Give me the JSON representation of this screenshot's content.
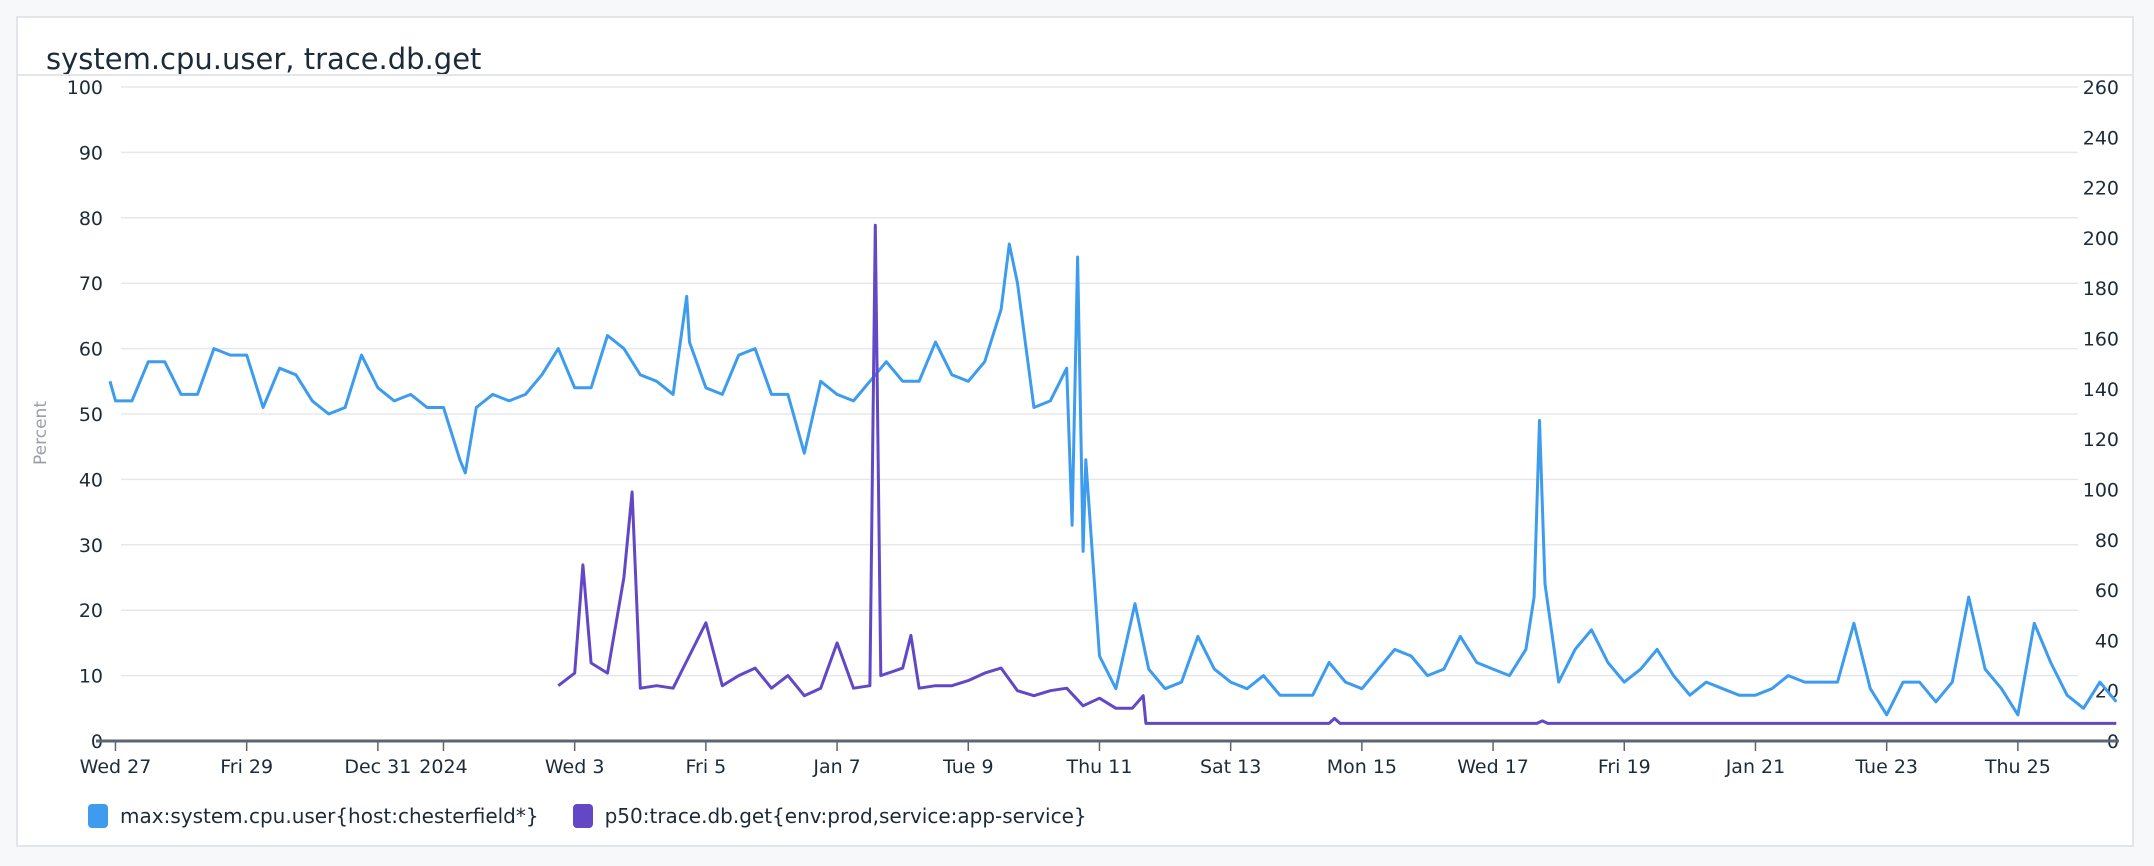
{
  "widget": {
    "title": "system.cpu.user, trace.db.get"
  },
  "chart_data": {
    "type": "line",
    "title": "system.cpu.user, trace.db.get",
    "ylabel": "Percent",
    "ylim": [
      0,
      100
    ],
    "yticks": [
      0,
      10,
      20,
      30,
      40,
      50,
      60,
      70,
      80,
      90,
      100
    ],
    "y2lim": [
      0,
      260
    ],
    "y2ticks": [
      0,
      20,
      40,
      60,
      80,
      100,
      120,
      140,
      160,
      180,
      200,
      220,
      240,
      260
    ],
    "xlim": [
      "2023-12-26T22:00",
      "2024-01-26T13:00"
    ],
    "xticks": [
      {
        "label": "Wed 27",
        "date": "2023-12-27T00:00"
      },
      {
        "label": "Fri 29",
        "date": "2023-12-29T00:00"
      },
      {
        "label": "Dec 31",
        "date": "2023-12-31T00:00"
      },
      {
        "label": "2024",
        "date": "2024-01-01T00:00"
      },
      {
        "label": "Wed 3",
        "date": "2024-01-03T00:00"
      },
      {
        "label": "Fri 5",
        "date": "2024-01-05T00:00"
      },
      {
        "label": "Jan 7",
        "date": "2024-01-07T00:00"
      },
      {
        "label": "Tue 9",
        "date": "2024-01-09T00:00"
      },
      {
        "label": "Thu 11",
        "date": "2024-01-11T00:00"
      },
      {
        "label": "Sat 13",
        "date": "2024-01-13T00:00"
      },
      {
        "label": "Mon 15",
        "date": "2024-01-15T00:00"
      },
      {
        "label": "Wed 17",
        "date": "2024-01-17T00:00"
      },
      {
        "label": "Fri 19",
        "date": "2024-01-19T00:00"
      },
      {
        "label": "Jan 21",
        "date": "2024-01-21T00:00"
      },
      {
        "label": "Tue 23",
        "date": "2024-01-23T00:00"
      },
      {
        "label": "Thu 25",
        "date": "2024-01-25T00:00"
      }
    ],
    "grid": true,
    "legend": "bottom-left",
    "series": [
      {
        "name": "max:system.cpu.user{host:chesterfield*}",
        "color": "#3d9cee",
        "axis": "left",
        "points": [
          [
            "2023-12-26T22:00",
            55
          ],
          [
            "2023-12-27T00:00",
            52
          ],
          [
            "2023-12-27T06:00",
            52
          ],
          [
            "2023-12-27T12:00",
            58
          ],
          [
            "2023-12-27T18:00",
            58
          ],
          [
            "2023-12-28T00:00",
            53
          ],
          [
            "2023-12-28T06:00",
            53
          ],
          [
            "2023-12-28T12:00",
            60
          ],
          [
            "2023-12-28T18:00",
            59
          ],
          [
            "2023-12-29T00:00",
            59
          ],
          [
            "2023-12-29T06:00",
            51
          ],
          [
            "2023-12-29T12:00",
            57
          ],
          [
            "2023-12-29T18:00",
            56
          ],
          [
            "2023-12-30T00:00",
            52
          ],
          [
            "2023-12-30T06:00",
            50
          ],
          [
            "2023-12-30T12:00",
            51
          ],
          [
            "2023-12-30T18:00",
            59
          ],
          [
            "2023-12-31T00:00",
            54
          ],
          [
            "2023-12-31T06:00",
            52
          ],
          [
            "2023-12-31T12:00",
            53
          ],
          [
            "2023-12-31T18:00",
            51
          ],
          [
            "2024-01-01T00:00",
            51
          ],
          [
            "2024-01-01T06:00",
            43
          ],
          [
            "2024-01-01T08:00",
            41
          ],
          [
            "2024-01-01T12:00",
            51
          ],
          [
            "2024-01-01T18:00",
            53
          ],
          [
            "2024-01-02T00:00",
            52
          ],
          [
            "2024-01-02T06:00",
            53
          ],
          [
            "2024-01-02T12:00",
            56
          ],
          [
            "2024-01-02T18:00",
            60
          ],
          [
            "2024-01-03T00:00",
            54
          ],
          [
            "2024-01-03T06:00",
            54
          ],
          [
            "2024-01-03T12:00",
            62
          ],
          [
            "2024-01-03T18:00",
            60
          ],
          [
            "2024-01-04T00:00",
            56
          ],
          [
            "2024-01-04T06:00",
            55
          ],
          [
            "2024-01-04T12:00",
            53
          ],
          [
            "2024-01-04T17:00",
            68
          ],
          [
            "2024-01-04T18:00",
            61
          ],
          [
            "2024-01-05T00:00",
            54
          ],
          [
            "2024-01-05T06:00",
            53
          ],
          [
            "2024-01-05T12:00",
            59
          ],
          [
            "2024-01-05T18:00",
            60
          ],
          [
            "2024-01-06T00:00",
            53
          ],
          [
            "2024-01-06T06:00",
            53
          ],
          [
            "2024-01-06T12:00",
            44
          ],
          [
            "2024-01-06T18:00",
            55
          ],
          [
            "2024-01-07T00:00",
            53
          ],
          [
            "2024-01-07T06:00",
            52
          ],
          [
            "2024-01-07T12:00",
            55
          ],
          [
            "2024-01-07T18:00",
            58
          ],
          [
            "2024-01-08T00:00",
            55
          ],
          [
            "2024-01-08T06:00",
            55
          ],
          [
            "2024-01-08T12:00",
            61
          ],
          [
            "2024-01-08T18:00",
            56
          ],
          [
            "2024-01-09T00:00",
            55
          ],
          [
            "2024-01-09T06:00",
            58
          ],
          [
            "2024-01-09T12:00",
            66
          ],
          [
            "2024-01-09T15:00",
            76
          ],
          [
            "2024-01-09T18:00",
            70
          ],
          [
            "2024-01-10T00:00",
            51
          ],
          [
            "2024-01-10T06:00",
            52
          ],
          [
            "2024-01-10T12:00",
            57
          ],
          [
            "2024-01-10T14:00",
            33
          ],
          [
            "2024-01-10T16:00",
            74
          ],
          [
            "2024-01-10T18:00",
            29
          ],
          [
            "2024-01-10T19:00",
            43
          ],
          [
            "2024-01-11T00:00",
            13
          ],
          [
            "2024-01-11T06:00",
            8
          ],
          [
            "2024-01-11T13:00",
            21
          ],
          [
            "2024-01-11T18:00",
            11
          ],
          [
            "2024-01-12T00:00",
            8
          ],
          [
            "2024-01-12T06:00",
            9
          ],
          [
            "2024-01-12T12:00",
            16
          ],
          [
            "2024-01-12T18:00",
            11
          ],
          [
            "2024-01-13T00:00",
            9
          ],
          [
            "2024-01-13T06:00",
            8
          ],
          [
            "2024-01-13T12:00",
            10
          ],
          [
            "2024-01-13T18:00",
            7
          ],
          [
            "2024-01-14T00:00",
            7
          ],
          [
            "2024-01-14T06:00",
            7
          ],
          [
            "2024-01-14T12:00",
            12
          ],
          [
            "2024-01-14T18:00",
            9
          ],
          [
            "2024-01-15T00:00",
            8
          ],
          [
            "2024-01-15T06:00",
            11
          ],
          [
            "2024-01-15T12:00",
            14
          ],
          [
            "2024-01-15T18:00",
            13
          ],
          [
            "2024-01-16T00:00",
            10
          ],
          [
            "2024-01-16T06:00",
            11
          ],
          [
            "2024-01-16T12:00",
            16
          ],
          [
            "2024-01-16T18:00",
            12
          ],
          [
            "2024-01-17T00:00",
            11
          ],
          [
            "2024-01-17T06:00",
            10
          ],
          [
            "2024-01-17T12:00",
            14
          ],
          [
            "2024-01-17T15:00",
            22
          ],
          [
            "2024-01-17T17:00",
            49
          ],
          [
            "2024-01-17T19:00",
            24
          ],
          [
            "2024-01-18T00:00",
            9
          ],
          [
            "2024-01-18T06:00",
            14
          ],
          [
            "2024-01-18T12:00",
            17
          ],
          [
            "2024-01-18T18:00",
            12
          ],
          [
            "2024-01-19T00:00",
            9
          ],
          [
            "2024-01-19T06:00",
            11
          ],
          [
            "2024-01-19T12:00",
            14
          ],
          [
            "2024-01-19T18:00",
            10
          ],
          [
            "2024-01-20T00:00",
            7
          ],
          [
            "2024-01-20T06:00",
            9
          ],
          [
            "2024-01-20T12:00",
            8
          ],
          [
            "2024-01-20T18:00",
            7
          ],
          [
            "2024-01-21T00:00",
            7
          ],
          [
            "2024-01-21T06:00",
            8
          ],
          [
            "2024-01-21T12:00",
            10
          ],
          [
            "2024-01-21T18:00",
            9
          ],
          [
            "2024-01-22T00:00",
            9
          ],
          [
            "2024-01-22T06:00",
            9
          ],
          [
            "2024-01-22T12:00",
            18
          ],
          [
            "2024-01-22T18:00",
            8
          ],
          [
            "2024-01-23T00:00",
            4
          ],
          [
            "2024-01-23T06:00",
            9
          ],
          [
            "2024-01-23T12:00",
            9
          ],
          [
            "2024-01-23T18:00",
            6
          ],
          [
            "2024-01-24T00:00",
            9
          ],
          [
            "2024-01-24T06:00",
            22
          ],
          [
            "2024-01-24T12:00",
            11
          ],
          [
            "2024-01-24T18:00",
            8
          ],
          [
            "2024-01-25T00:00",
            4
          ],
          [
            "2024-01-25T06:00",
            18
          ],
          [
            "2024-01-25T12:00",
            12
          ],
          [
            "2024-01-25T18:00",
            7
          ],
          [
            "2024-01-26T00:00",
            5
          ],
          [
            "2024-01-26T06:00",
            9
          ],
          [
            "2024-01-26T12:00",
            6
          ]
        ]
      },
      {
        "name": "p50:trace.db.get{env:prod,service:app-service}",
        "color": "#6248c6",
        "axis": "right",
        "points": [
          [
            "2024-01-02T18:00",
            22
          ],
          [
            "2024-01-03T00:00",
            27
          ],
          [
            "2024-01-03T03:00",
            70
          ],
          [
            "2024-01-03T06:00",
            31
          ],
          [
            "2024-01-03T12:00",
            27
          ],
          [
            "2024-01-03T18:00",
            65
          ],
          [
            "2024-01-03T21:00",
            99
          ],
          [
            "2024-01-04T00:00",
            21
          ],
          [
            "2024-01-04T06:00",
            22
          ],
          [
            "2024-01-04T12:00",
            21
          ],
          [
            "2024-01-04T18:00",
            34
          ],
          [
            "2024-01-05T00:00",
            47
          ],
          [
            "2024-01-05T06:00",
            22
          ],
          [
            "2024-01-05T12:00",
            26
          ],
          [
            "2024-01-05T18:00",
            29
          ],
          [
            "2024-01-06T00:00",
            21
          ],
          [
            "2024-01-06T06:00",
            26
          ],
          [
            "2024-01-06T12:00",
            18
          ],
          [
            "2024-01-06T18:00",
            21
          ],
          [
            "2024-01-07T00:00",
            39
          ],
          [
            "2024-01-07T06:00",
            21
          ],
          [
            "2024-01-07T12:00",
            22
          ],
          [
            "2024-01-07T14:00",
            205
          ],
          [
            "2024-01-07T16:00",
            26
          ],
          [
            "2024-01-08T00:00",
            29
          ],
          [
            "2024-01-08T03:00",
            42
          ],
          [
            "2024-01-08T06:00",
            21
          ],
          [
            "2024-01-08T12:00",
            22
          ],
          [
            "2024-01-08T18:00",
            22
          ],
          [
            "2024-01-09T00:00",
            24
          ],
          [
            "2024-01-09T06:00",
            27
          ],
          [
            "2024-01-09T12:00",
            29
          ],
          [
            "2024-01-09T18:00",
            20
          ],
          [
            "2024-01-10T00:00",
            18
          ],
          [
            "2024-01-10T06:00",
            20
          ],
          [
            "2024-01-10T12:00",
            21
          ],
          [
            "2024-01-10T18:00",
            14
          ],
          [
            "2024-01-11T00:00",
            17
          ],
          [
            "2024-01-11T06:00",
            13
          ],
          [
            "2024-01-11T12:00",
            13
          ],
          [
            "2024-01-11T16:00",
            18
          ],
          [
            "2024-01-11T17:00",
            7
          ],
          [
            "2024-01-12T12:00",
            7
          ],
          [
            "2024-01-13T12:00",
            7
          ],
          [
            "2024-01-14T12:00",
            7
          ],
          [
            "2024-01-14T14:00",
            9
          ],
          [
            "2024-01-14T16:00",
            7
          ],
          [
            "2024-01-16T00:00",
            7
          ],
          [
            "2024-01-17T16:00",
            7
          ],
          [
            "2024-01-17T18:00",
            8
          ],
          [
            "2024-01-17T20:00",
            7
          ],
          [
            "2024-01-20T00:00",
            7
          ],
          [
            "2024-01-23T00:00",
            7
          ],
          [
            "2024-01-26T12:00",
            7
          ]
        ]
      }
    ]
  }
}
